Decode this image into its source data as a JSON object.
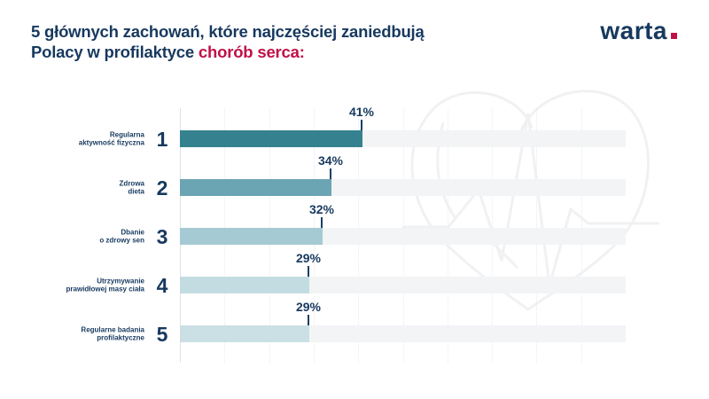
{
  "header": {
    "title_line1": "5 głównych zachowań, które najczęściej zaniedbują",
    "title_line2_prefix": "Polacy w profilaktyce",
    "title_line2_accent": "chorób serca:"
  },
  "brand": {
    "logo_text": "warta"
  },
  "colors": {
    "navy": "#17395f",
    "red": "#c01048",
    "track": "#f3f4f6",
    "axis": "#dde2e7",
    "grid": "#e8ebee",
    "watermark": "#f1f1f3",
    "bars": [
      "#35818f",
      "#6ba5b3",
      "#a5cad3",
      "#c3dce2",
      "#cbe0e5"
    ]
  },
  "chart_data": {
    "type": "bar",
    "orientation": "horizontal",
    "title": "5 głównych zachowań, które najczęściej zaniedbują Polacy w profilaktyce chorób serca",
    "categories": [
      "Regularna aktywność fizyczna",
      "Zdrowa dieta",
      "Dbanie o zdrowy sen",
      "Utrzymywanie prawidłowej masy ciała",
      "Regularne badania profilaktyczne"
    ],
    "values": [
      41,
      34,
      32,
      29,
      29
    ],
    "xlim": [
      0,
      100
    ],
    "grid": "vertical-dotted-every-10pct",
    "legend": "none",
    "rows": [
      {
        "rank": "1",
        "label_lines": [
          "Regularna",
          "aktywność fizyczna"
        ],
        "value": 41,
        "value_label": "41%"
      },
      {
        "rank": "2",
        "label_lines": [
          "Zdrowa",
          "dieta"
        ],
        "value": 34,
        "value_label": "34%"
      },
      {
        "rank": "3",
        "label_lines": [
          "Dbanie",
          "o zdrowy sen"
        ],
        "value": 32,
        "value_label": "32%"
      },
      {
        "rank": "4",
        "label_lines": [
          "Utrzymywanie",
          "prawidłowej masy ciała"
        ],
        "value": 29,
        "value_label": "29%"
      },
      {
        "rank": "5",
        "label_lines": [
          "Regularne badania",
          "profilaktyczne"
        ],
        "value": 29,
        "value_label": "29%"
      }
    ]
  }
}
